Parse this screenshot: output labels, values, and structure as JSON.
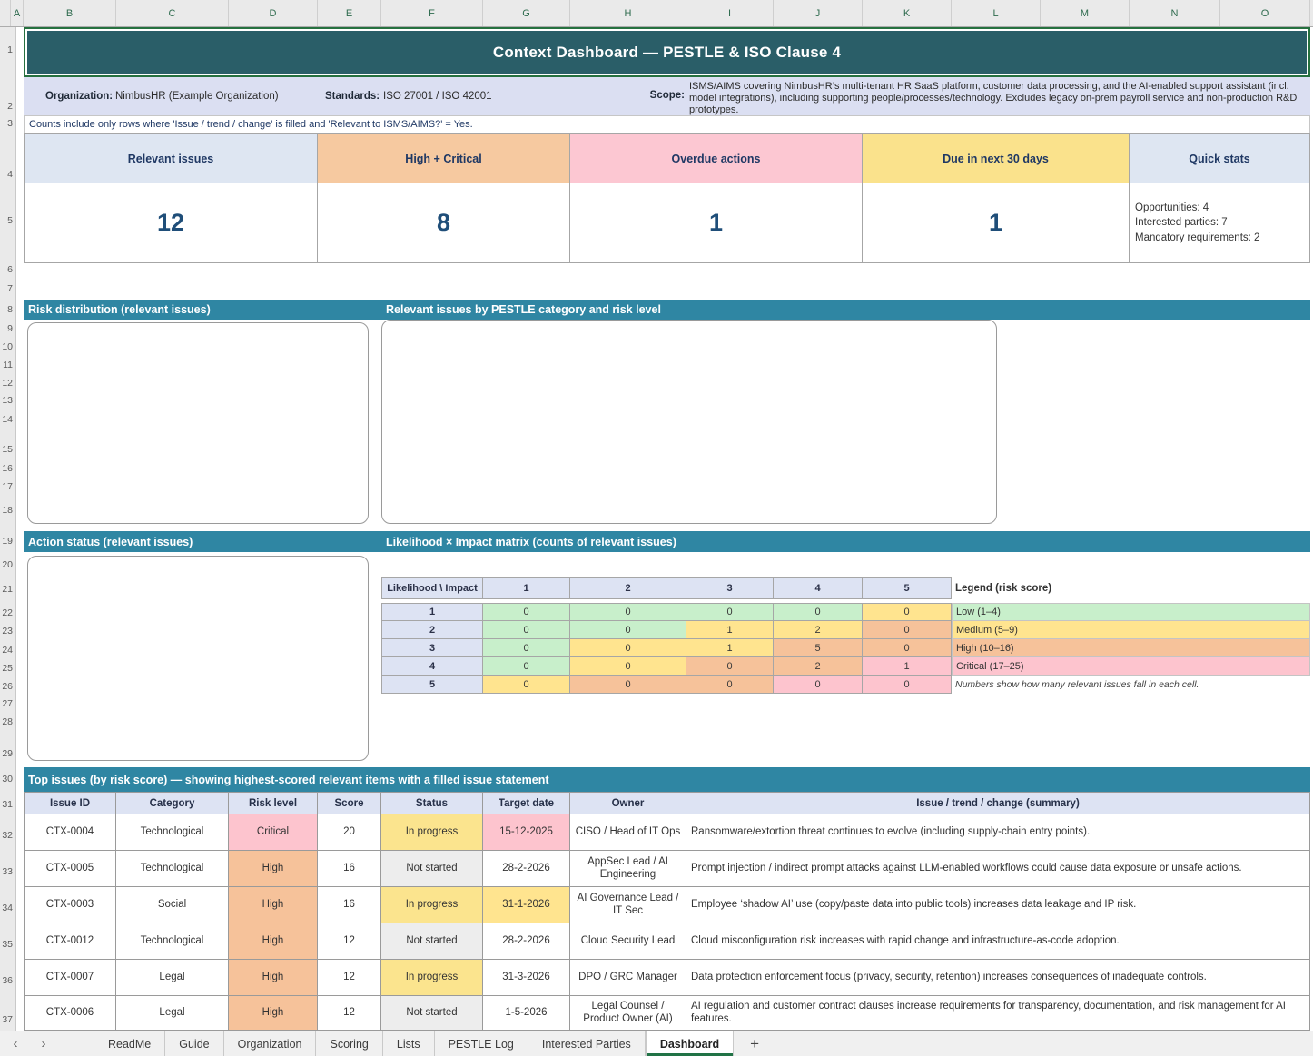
{
  "title": "Context Dashboard — PESTLE & ISO Clause 4",
  "spreadsheet": {
    "columns": [
      "A",
      "B",
      "C",
      "D",
      "E",
      "F",
      "G",
      "H",
      "I",
      "J",
      "K",
      "L",
      "M",
      "N",
      "O"
    ],
    "row_numbers": [
      1,
      2,
      3,
      4,
      5,
      6,
      7,
      8,
      9,
      10,
      11,
      12,
      13,
      14,
      15,
      16,
      17,
      18,
      19,
      20,
      21,
      22,
      23,
      24,
      25,
      26,
      27,
      28,
      29,
      30,
      31,
      32,
      33,
      34,
      35,
      36,
      37
    ]
  },
  "info": {
    "org_label": "Organization:",
    "org_value": "NimbusHR (Example Organization)",
    "standards_label": "Standards:",
    "standards_value": "ISO 27001 / ISO 42001",
    "scope_label": "Scope:",
    "scope_value": "ISMS/AIMS covering NimbusHR’s multi-tenant HR SaaS platform, customer data processing, and the AI-enabled support assistant (incl. model integrations), including supporting people/processes/technology. Excludes legacy on-prem payroll service and non-production R&D prototypes."
  },
  "note": "Counts include only rows where 'Issue / trend / change' is filled and 'Relevant to ISMS/AIMS?' = Yes.",
  "kpis": [
    {
      "label": "Relevant issues",
      "value": "12",
      "header_bg": "#DEE6F2"
    },
    {
      "label": "High + Critical",
      "value": "8",
      "header_bg": "#F6C9A0"
    },
    {
      "label": "Overdue actions",
      "value": "1",
      "header_bg": "#FCC7D2"
    },
    {
      "label": "Due in next 30 days",
      "value": "1",
      "header_bg": "#FAE28C"
    },
    {
      "label": "Quick stats",
      "value": "",
      "header_bg": "#DEE6F2",
      "stats": [
        "Opportunities: 4",
        "Interested parties: 7",
        "Mandatory requirements: 2"
      ]
    }
  ],
  "sections": {
    "risk_distribution": "Risk distribution (relevant issues)",
    "pestle_by_risk": "Relevant issues by PESTLE category and risk level",
    "action_status": "Action status (relevant issues)",
    "matrix": "Likelihood × Impact matrix (counts of relevant issues)",
    "top_issues": "Top issues (by risk score) — showing highest-scored relevant items with a filled issue statement"
  },
  "matrix": {
    "corner": "Likelihood \\ Impact",
    "impact_headers": [
      "1",
      "2",
      "3",
      "4",
      "5"
    ],
    "rows": [
      {
        "likelihood": "1",
        "cells": [
          {
            "v": "0",
            "c": "green"
          },
          {
            "v": "0",
            "c": "green"
          },
          {
            "v": "0",
            "c": "green"
          },
          {
            "v": "0",
            "c": "green"
          },
          {
            "v": "0",
            "c": "yellow"
          }
        ]
      },
      {
        "likelihood": "2",
        "cells": [
          {
            "v": "0",
            "c": "green"
          },
          {
            "v": "0",
            "c": "green"
          },
          {
            "v": "1",
            "c": "yellow"
          },
          {
            "v": "2",
            "c": "yellow"
          },
          {
            "v": "0",
            "c": "orange"
          }
        ]
      },
      {
        "likelihood": "3",
        "cells": [
          {
            "v": "0",
            "c": "green"
          },
          {
            "v": "0",
            "c": "yellow"
          },
          {
            "v": "1",
            "c": "yellow"
          },
          {
            "v": "5",
            "c": "orange"
          },
          {
            "v": "0",
            "c": "orange"
          }
        ]
      },
      {
        "likelihood": "4",
        "cells": [
          {
            "v": "0",
            "c": "green"
          },
          {
            "v": "0",
            "c": "yellow"
          },
          {
            "v": "0",
            "c": "orange"
          },
          {
            "v": "2",
            "c": "orange"
          },
          {
            "v": "1",
            "c": "pink"
          }
        ]
      },
      {
        "likelihood": "5",
        "cells": [
          {
            "v": "0",
            "c": "yellow"
          },
          {
            "v": "0",
            "c": "orange"
          },
          {
            "v": "0",
            "c": "orange"
          },
          {
            "v": "0",
            "c": "pink"
          },
          {
            "v": "0",
            "c": "pink"
          }
        ]
      }
    ],
    "legend_title": "Legend (risk score)",
    "legend": [
      {
        "label": "Low (1–4)",
        "c": "green"
      },
      {
        "label": "Medium (5–9)",
        "c": "yellow"
      },
      {
        "label": "High (10–16)",
        "c": "orange"
      },
      {
        "label": "Critical (17–25)",
        "c": "pink"
      }
    ],
    "note": "Numbers show how many relevant issues fall in each cell."
  },
  "issues_table": {
    "headers": [
      "Issue ID",
      "Category",
      "Risk level",
      "Score",
      "Status",
      "Target date",
      "Owner",
      "Issue / trend / change (summary)"
    ],
    "rows": [
      {
        "id": "CTX-0004",
        "category": "Technological",
        "risk": "Critical",
        "risk_c": "pink",
        "score": "20",
        "status": "In progress",
        "status_c": "ip",
        "date": "15-12-2025",
        "date_c": "pink",
        "owner": "CISO / Head of IT Ops",
        "summary": "Ransomware/extortion threat continues to evolve (including supply-chain entry points)."
      },
      {
        "id": "CTX-0005",
        "category": "Technological",
        "risk": "High",
        "risk_c": "orange",
        "score": "16",
        "status": "Not started",
        "status_c": "ns",
        "date": "28-2-2026",
        "date_c": "none",
        "owner": "AppSec Lead / AI Engineering",
        "summary": "Prompt injection / indirect prompt attacks against LLM-enabled workflows could cause data exposure or unsafe actions."
      },
      {
        "id": "CTX-0003",
        "category": "Social",
        "risk": "High",
        "risk_c": "orange",
        "score": "16",
        "status": "In progress",
        "status_c": "ip",
        "date": "31-1-2026",
        "date_c": "yellow",
        "owner": "AI Governance Lead / IT Sec",
        "summary": "Employee ‘shadow AI’ use (copy/paste data into public tools) increases data leakage and IP risk."
      },
      {
        "id": "CTX-0012",
        "category": "Technological",
        "risk": "High",
        "risk_c": "orange",
        "score": "12",
        "status": "Not started",
        "status_c": "ns",
        "date": "28-2-2026",
        "date_c": "none",
        "owner": "Cloud Security Lead",
        "summary": "Cloud misconfiguration risk increases with rapid change and infrastructure-as-code adoption."
      },
      {
        "id": "CTX-0007",
        "category": "Legal",
        "risk": "High",
        "risk_c": "orange",
        "score": "12",
        "status": "In progress",
        "status_c": "ip",
        "date": "31-3-2026",
        "date_c": "none",
        "owner": "DPO / GRC Manager",
        "summary": "Data protection enforcement focus (privacy, security, retention) increases consequences of inadequate controls."
      },
      {
        "id": "CTX-0006",
        "category": "Legal",
        "risk": "High",
        "risk_c": "orange",
        "score": "12",
        "status": "Not started",
        "status_c": "ns",
        "date": "1-5-2026",
        "date_c": "none",
        "owner": "Legal Counsel / Product Owner (AI)",
        "summary": "AI regulation and customer contract clauses increase requirements for transparency, documentation, and risk management for AI features."
      }
    ]
  },
  "tab_bar": {
    "tabs": [
      "ReadMe",
      "Guide",
      "Organization",
      "Scoring",
      "Lists",
      "PESTLE Log",
      "Interested Parties",
      "Dashboard"
    ],
    "active_tab": "Dashboard",
    "add_label": "+",
    "prev_label": "‹",
    "next_label": "›"
  },
  "colors": {
    "title_bar_bg": "#2A5E68",
    "title_border_green": "#26713F",
    "section_bar_bg": "#2F86A3",
    "info_bg": "#DBDFF2",
    "kpi_text_navy": "#1F3864",
    "kpi_value_navy": "#1F4E79",
    "header_periwinkle": "#DDE3F3",
    "cell_green": "#C8EFCB",
    "cell_yellow": "#FFE48F",
    "cell_orange": "#F6C29A",
    "cell_pink": "#FDC4CE",
    "status_in_progress": "#FBE48E",
    "status_not_started": "#EDEDED",
    "active_tab_underline": "#217346"
  }
}
